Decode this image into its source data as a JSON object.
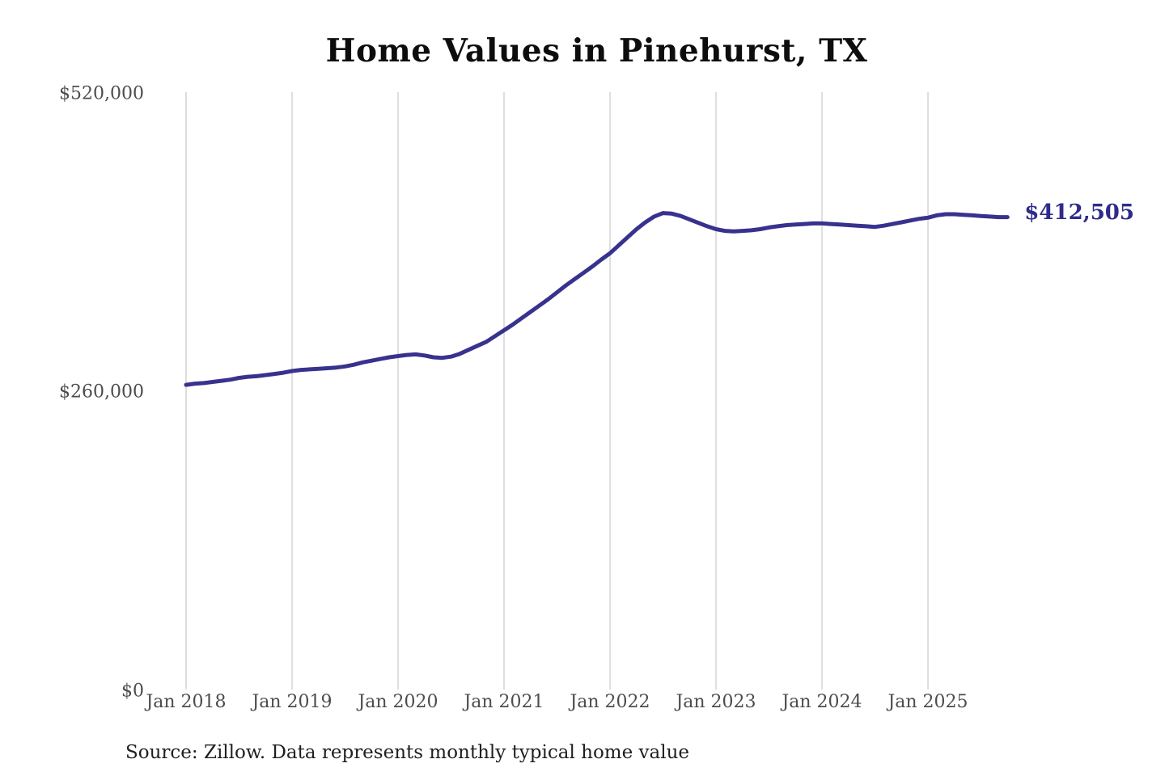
{
  "title": "Home Values in Pinehurst, TX",
  "source_note": "Source: Zillow. Data represents monthly typical home value",
  "end_label": "$412,505",
  "colors": {
    "line": "#38328f",
    "end_label": "#2f2b8a",
    "gridline": "#c9c9c9",
    "axis_text": "#4d4d4d",
    "title_text": "#0d0d0d",
    "source_text": "#1f1f1f",
    "background": "#ffffff"
  },
  "y_axis": {
    "ticks": [
      {
        "label": "$520,000",
        "value": 520000
      },
      {
        "label": "$260,000",
        "value": 260000
      },
      {
        "label": "$0",
        "value": 0
      }
    ]
  },
  "x_axis": {
    "ticks": [
      {
        "label": "Jan 2018"
      },
      {
        "label": "Jan 2019"
      },
      {
        "label": "Jan 2020"
      },
      {
        "label": "Jan 2021"
      },
      {
        "label": "Jan 2022"
      },
      {
        "label": "Jan 2023"
      },
      {
        "label": "Jan 2024"
      },
      {
        "label": "Jan 2025"
      }
    ]
  },
  "chart_data": {
    "type": "line",
    "title": "Home Values in Pinehurst, TX",
    "xlabel": "",
    "ylabel": "",
    "ylim": [
      0,
      520000
    ],
    "x_start": "2018-01",
    "x_end": "2025-10",
    "x_interval": "monthly",
    "grid": "vertical-only",
    "legend": "none",
    "series": [
      {
        "name": "Typical home value (monthly)",
        "color": "#38328f",
        "final_value": 412505,
        "final_value_label": "$412,505",
        "values": [
          266500,
          267500,
          268000,
          269000,
          270000,
          271000,
          272500,
          273500,
          274000,
          275000,
          276000,
          277000,
          278500,
          279500,
          280000,
          280500,
          281000,
          281500,
          282500,
          284000,
          286000,
          287500,
          289000,
          290500,
          291500,
          292500,
          293000,
          292000,
          290500,
          290000,
          291000,
          293500,
          297000,
          300500,
          304000,
          309000,
          314000,
          319000,
          324500,
          330000,
          335500,
          341000,
          347000,
          353000,
          358500,
          364000,
          369500,
          375500,
          381000,
          388000,
          395000,
          402000,
          408000,
          413000,
          416000,
          415500,
          413500,
          410500,
          407500,
          404500,
          402000,
          400500,
          400000,
          400500,
          401000,
          402000,
          403500,
          404500,
          405500,
          406000,
          406500,
          407000,
          407000,
          406500,
          406000,
          405500,
          405000,
          404500,
          404000,
          405000,
          406500,
          408000,
          409500,
          411000,
          412000,
          414000,
          415000,
          415000,
          414500,
          414000,
          413500,
          413000,
          412500,
          412505
        ]
      }
    ]
  }
}
